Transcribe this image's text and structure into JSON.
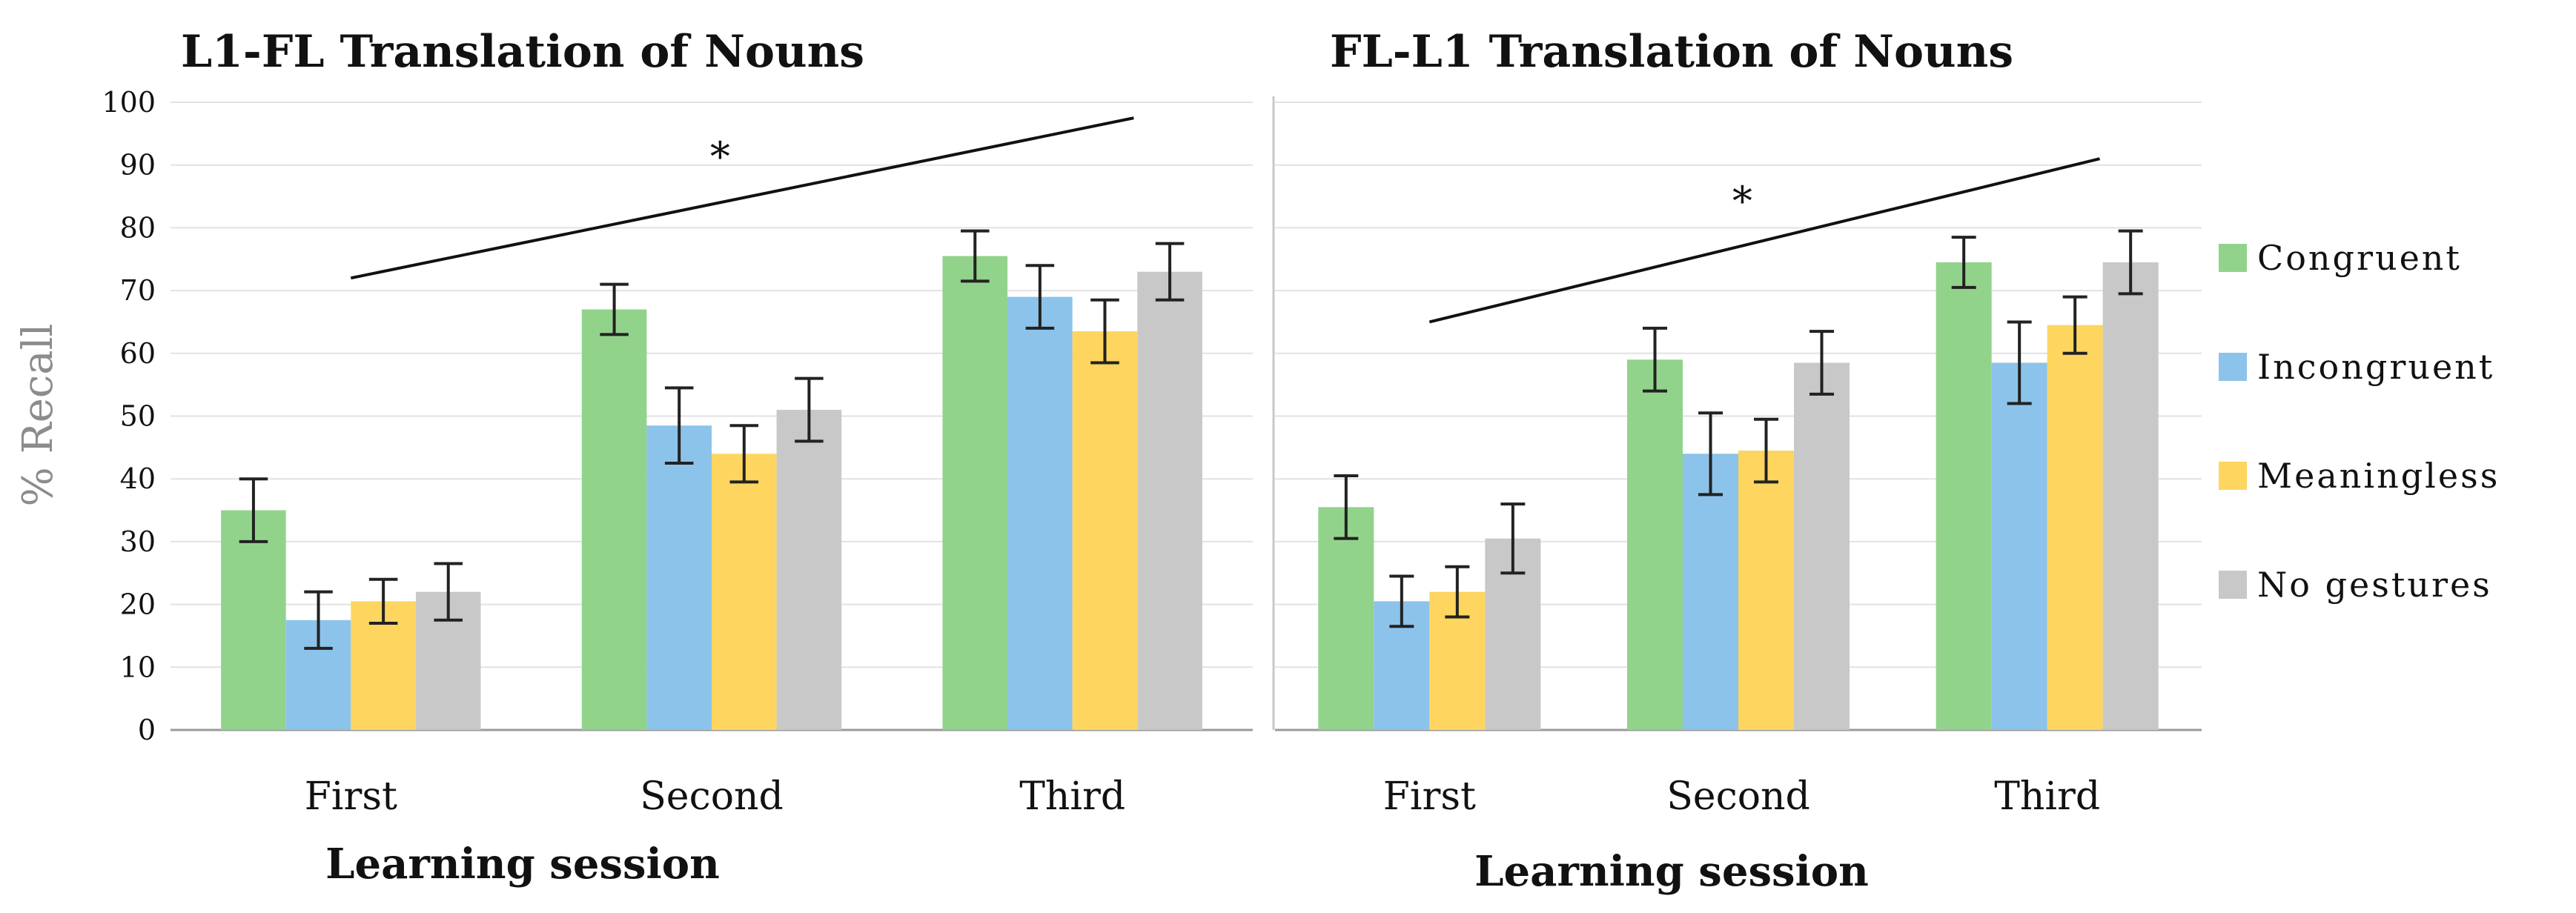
{
  "chart_data": [
    {
      "type": "bar",
      "title": "L1-FL Translation of Nouns",
      "xlabel": "Learning session",
      "ylabel": "% Recall",
      "ylim": [
        0,
        100
      ],
      "yticks": [
        0,
        10,
        20,
        30,
        40,
        50,
        60,
        70,
        80,
        90,
        100
      ],
      "categories": [
        "First",
        "Second",
        "Third"
      ],
      "series": [
        {
          "name": "Congruent",
          "color": "#92d38b",
          "values": [
            35,
            67,
            75.5
          ],
          "error": [
            5,
            4,
            4
          ]
        },
        {
          "name": "Incongruent",
          "color": "#8cc3ea",
          "values": [
            17.5,
            48.5,
            69
          ],
          "error": [
            4.5,
            6,
            5
          ]
        },
        {
          "name": "Meaningless",
          "color": "#fdd55f",
          "values": [
            20.5,
            44,
            63.5
          ],
          "error": [
            3.5,
            4.5,
            5
          ]
        },
        {
          "name": "No gestures",
          "color": "#c8c8c8",
          "values": [
            22,
            51,
            73
          ],
          "error": [
            4.5,
            5,
            4.5
          ]
        }
      ],
      "annotation": {
        "text": "*",
        "line_from": {
          "category": "First",
          "value": 72
        },
        "line_to": {
          "category": "Third",
          "value": 97.5
        }
      }
    },
    {
      "type": "bar",
      "title": "FL-L1 Translation of Nouns",
      "xlabel": "Learning session",
      "ylabel": "",
      "ylim": [
        0,
        100
      ],
      "categories": [
        "First",
        "Second",
        "Third"
      ],
      "series": [
        {
          "name": "Congruent",
          "color": "#92d38b",
          "values": [
            35.5,
            59,
            74.5
          ],
          "error": [
            5,
            5,
            4
          ]
        },
        {
          "name": "Incongruent",
          "color": "#8cc3ea",
          "values": [
            20.5,
            44,
            58.5
          ],
          "error": [
            4,
            6.5,
            6.5
          ]
        },
        {
          "name": "Meaningless",
          "color": "#fdd55f",
          "values": [
            22,
            44.5,
            64.5
          ],
          "error": [
            4,
            5,
            4.5
          ]
        },
        {
          "name": "No gestures",
          "color": "#c8c8c8",
          "values": [
            30.5,
            58.5,
            74.5
          ],
          "error": [
            5.5,
            5,
            5
          ]
        }
      ],
      "annotation": {
        "text": "*",
        "line_from": {
          "category": "First",
          "value": 65
        },
        "line_to": {
          "category": "Third",
          "value": 91
        }
      }
    }
  ],
  "legend": {
    "position": "right",
    "items": [
      {
        "label": "Congruent",
        "color": "#92d38b"
      },
      {
        "label": "Incongruent",
        "color": "#8cc3ea"
      },
      {
        "label": "Meaningless",
        "color": "#fdd55f"
      },
      {
        "label": "No gestures",
        "color": "#c8c8c8"
      }
    ]
  }
}
